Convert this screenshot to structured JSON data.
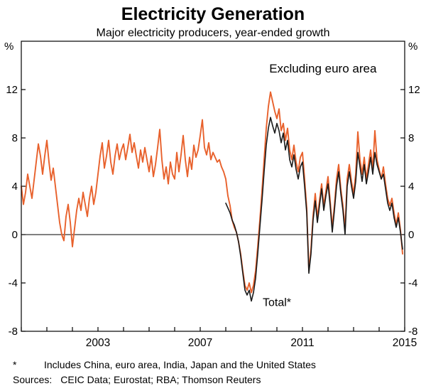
{
  "header": {
    "title": "Electricity Generation",
    "subtitle": "Major electricity producers, year-ended growth"
  },
  "footnotes": {
    "asterisk": "*",
    "footnote": "Includes China, euro area, India, Japan and the United States",
    "sources_label": "Sources:",
    "sources": "CEIC Data; Eurostat; RBA; Thomson Reuters"
  },
  "chart_data": {
    "type": "line",
    "title": "Electricity Generation",
    "subtitle": "Major electricity producers, year-ended growth",
    "ylabel_left": "%",
    "ylabel_right": "%",
    "ylim": [
      -8,
      16
    ],
    "yticks": [
      -8,
      -4,
      0,
      4,
      8,
      12
    ],
    "xlim": [
      2000,
      2015
    ],
    "xticks": [
      2003,
      2007,
      2011,
      2015
    ],
    "grid": false,
    "zero_line": true,
    "legend_position": "annotations-inline",
    "annotations": [
      {
        "text": "Excluding euro area",
        "x": 2011.8,
        "y": 13.4,
        "color": "#E8612C",
        "anchor": "middle",
        "size": 17
      },
      {
        "text": "Total*",
        "x": 2010.0,
        "y": -5.9,
        "color": "#000000",
        "anchor": "middle",
        "size": 16
      }
    ],
    "series": [
      {
        "name": "Excluding euro area",
        "color": "#E8612C",
        "x_start": 2000.0,
        "x_step": 0.083333,
        "values": [
          4.0,
          2.5,
          3.5,
          5.0,
          4.0,
          3.0,
          4.5,
          6.0,
          7.5,
          6.5,
          5.0,
          6.5,
          7.8,
          6.0,
          4.5,
          5.5,
          4.0,
          2.5,
          1.0,
          0.0,
          -0.5,
          1.5,
          2.5,
          1.0,
          -1.0,
          0.5,
          2.0,
          3.0,
          2.0,
          3.5,
          2.5,
          1.5,
          3.0,
          4.0,
          2.5,
          3.5,
          5.0,
          6.5,
          7.6,
          5.5,
          6.5,
          7.8,
          6.0,
          5.0,
          6.5,
          7.5,
          6.2,
          7.0,
          7.5,
          6.2,
          7.2,
          8.3,
          6.8,
          7.6,
          6.5,
          5.5,
          7.0,
          6.0,
          7.2,
          6.2,
          5.2,
          6.5,
          4.8,
          5.8,
          7.2,
          8.7,
          6.2,
          4.6,
          5.6,
          4.2,
          6.0,
          5.0,
          4.6,
          6.8,
          5.2,
          6.6,
          8.2,
          6.2,
          4.8,
          6.4,
          5.4,
          7.4,
          6.4,
          7.0,
          8.2,
          9.5,
          7.2,
          6.6,
          7.6,
          6.2,
          6.8,
          6.4,
          6.0,
          6.2,
          5.6,
          5.2,
          4.6,
          3.2,
          2.4,
          1.2,
          0.6,
          0.2,
          -0.6,
          -1.6,
          -3.0,
          -4.2,
          -4.6,
          -4.0,
          -4.8,
          -4.2,
          -3.0,
          -1.0,
          1.2,
          3.6,
          6.2,
          8.8,
          10.6,
          11.8,
          11.0,
          10.2,
          9.6,
          10.4,
          8.6,
          9.2,
          7.8,
          8.8,
          7.0,
          6.2,
          7.4,
          6.0,
          5.2,
          6.4,
          6.8,
          4.6,
          2.2,
          -3.0,
          -1.2,
          1.6,
          3.4,
          1.4,
          2.8,
          4.2,
          2.4,
          3.6,
          4.8,
          2.8,
          0.6,
          2.4,
          4.6,
          5.8,
          3.8,
          2.4,
          0.4,
          4.6,
          5.8,
          4.4,
          3.4,
          5.0,
          8.5,
          6.2,
          5.0,
          6.4,
          4.6,
          5.8,
          7.0,
          5.4,
          8.6,
          6.2,
          5.4,
          4.6,
          5.6,
          4.2,
          3.0,
          2.4,
          3.0,
          1.8,
          0.8,
          1.8,
          0.4,
          -1.6
        ]
      },
      {
        "name": "Total*",
        "color": "#1a1a1a",
        "x_start": 2008.0,
        "x_step": 0.083333,
        "values": [
          2.6,
          2.2,
          1.8,
          1.2,
          0.8,
          0.2,
          -0.6,
          -1.8,
          -3.2,
          -4.6,
          -5.0,
          -4.6,
          -5.5,
          -4.8,
          -3.6,
          -1.6,
          0.6,
          2.8,
          5.2,
          7.4,
          8.8,
          9.7,
          9.0,
          8.4,
          9.2,
          8.6,
          7.6,
          8.4,
          7.0,
          7.8,
          6.2,
          5.6,
          6.6,
          5.4,
          4.6,
          5.6,
          6.0,
          4.0,
          1.8,
          -3.2,
          -1.6,
          1.2,
          2.8,
          1.0,
          2.4,
          3.8,
          2.0,
          3.2,
          4.2,
          2.4,
          0.2,
          2.0,
          4.0,
          5.2,
          3.4,
          2.0,
          0.0,
          4.0,
          5.2,
          4.0,
          3.0,
          4.4,
          6.8,
          5.6,
          4.4,
          5.8,
          4.2,
          5.2,
          6.4,
          5.0,
          6.8,
          5.8,
          5.2,
          4.6,
          5.0,
          3.8,
          2.6,
          2.0,
          2.6,
          1.4,
          0.6,
          1.4,
          0.2,
          -1.2
        ]
      }
    ]
  }
}
